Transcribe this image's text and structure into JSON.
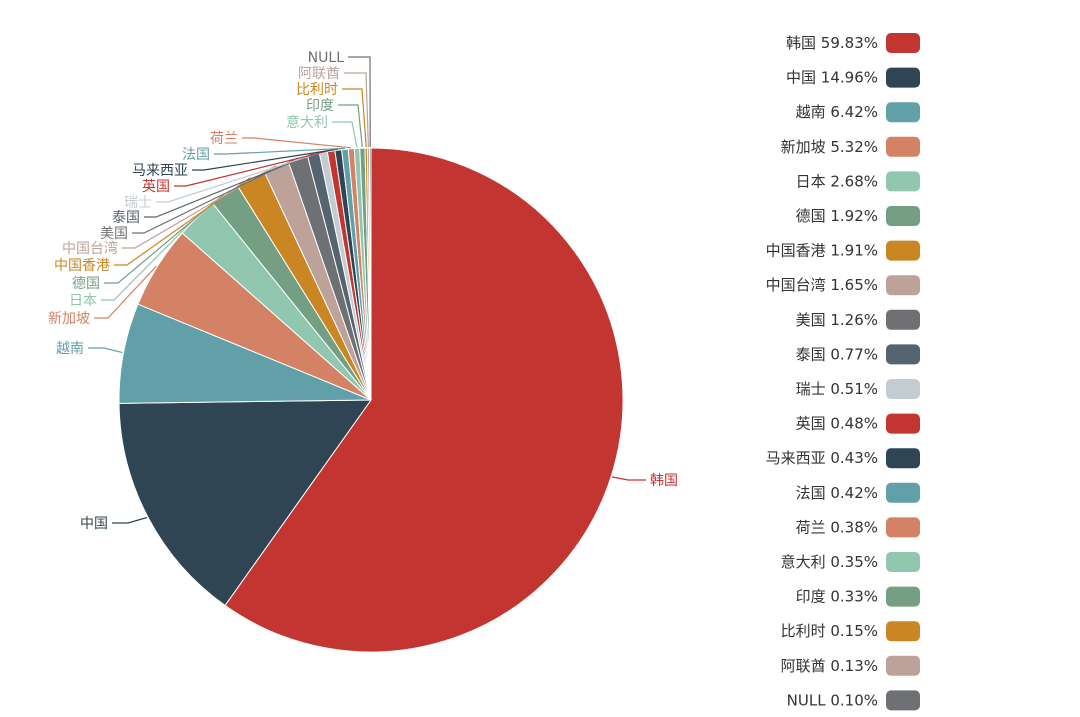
{
  "chart_data": {
    "type": "pie",
    "title": "",
    "legend_position": "right",
    "categories": [
      "韩国",
      "中国",
      "越南",
      "新加坡",
      "日本",
      "德国",
      "中国香港",
      "中国台湾",
      "美国",
      "泰国",
      "瑞士",
      "英国",
      "马来西亚",
      "法国",
      "荷兰",
      "意大利",
      "印度",
      "比利时",
      "阿联酋",
      "NULL"
    ],
    "values": [
      59.83,
      14.96,
      6.42,
      5.32,
      2.68,
      1.92,
      1.91,
      1.65,
      1.26,
      0.77,
      0.51,
      0.48,
      0.43,
      0.42,
      0.38,
      0.35,
      0.33,
      0.15,
      0.13,
      0.1
    ],
    "value_labels": [
      "59.83%",
      "14.96%",
      "6.42%",
      "5.32%",
      "2.68%",
      "1.92%",
      "1.91%",
      "1.65%",
      "1.26%",
      "0.77%",
      "0.51%",
      "0.48%",
      "0.43%",
      "0.42%",
      "0.38%",
      "0.35%",
      "0.33%",
      "0.15%",
      "0.13%",
      "0.10%"
    ],
    "colors": [
      "#c23531",
      "#2f4554",
      "#61a0a8",
      "#d48265",
      "#91c7ae",
      "#749f83",
      "#ca8622",
      "#bda29a",
      "#6e7074",
      "#546570",
      "#c4ccd3",
      "#c23531",
      "#2f4554",
      "#61a0a8",
      "#d48265",
      "#91c7ae",
      "#749f83",
      "#ca8622",
      "#bda29a",
      "#6e7074"
    ]
  }
}
